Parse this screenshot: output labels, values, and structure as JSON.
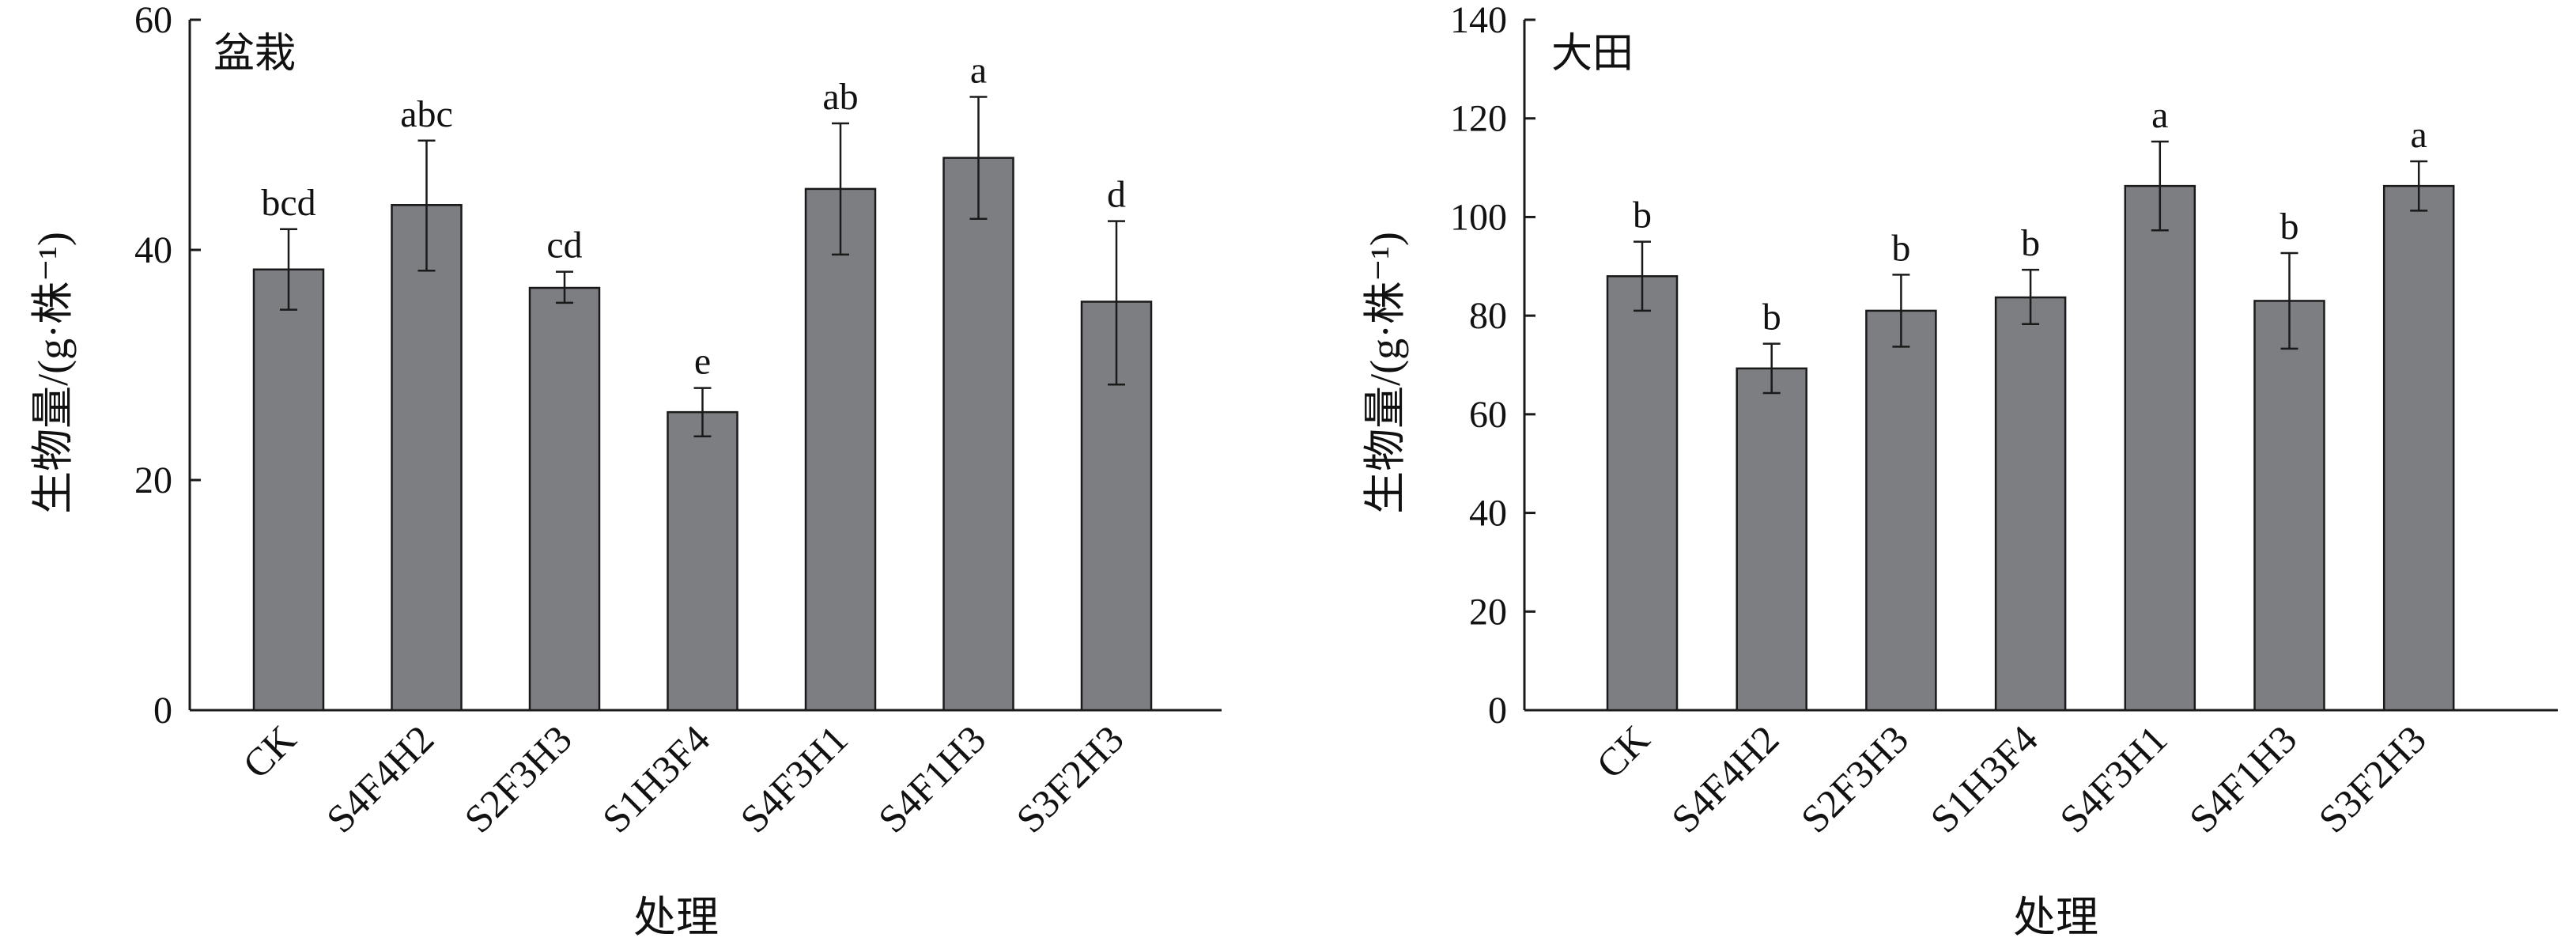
{
  "chart_data": [
    {
      "type": "bar",
      "title": "盆栽",
      "xlabel": "处理",
      "ylabel": "生物量/(g·株⁻¹)",
      "ylim": [
        0,
        60
      ],
      "yticks": [
        0,
        20,
        40,
        60
      ],
      "categories": [
        "CK",
        "S4F4H2",
        "S2F3H3",
        "S1H3F4",
        "S4F3H1",
        "S4F1H3",
        "S3F2H3"
      ],
      "values": [
        38.3,
        43.9,
        36.7,
        25.9,
        45.3,
        48.0,
        35.5
      ],
      "error_upper": [
        41.8,
        49.5,
        38.1,
        28.0,
        51.0,
        53.3,
        42.5
      ],
      "error_lower": [
        34.8,
        38.2,
        35.4,
        23.8,
        39.6,
        42.7,
        28.3
      ],
      "significance": [
        "bcd",
        "abc",
        "cd",
        "e",
        "ab",
        "a",
        "d"
      ],
      "grid": false
    },
    {
      "type": "bar",
      "title": "大田",
      "xlabel": "处理",
      "ylabel": "生物量/(g·株⁻¹)",
      "ylim": [
        0,
        140
      ],
      "yticks": [
        0,
        20,
        40,
        60,
        80,
        100,
        120,
        140
      ],
      "categories": [
        "CK",
        "S4F4H2",
        "S2F3H3",
        "S1H3F4",
        "S4F3H1",
        "S4F1H3",
        "S3F2H3"
      ],
      "values": [
        88.0,
        69.3,
        81.0,
        83.7,
        106.3,
        83.0,
        106.3
      ],
      "error_upper": [
        95.0,
        74.3,
        88.3,
        89.3,
        115.3,
        92.7,
        111.3
      ],
      "error_lower": [
        81.0,
        64.3,
        73.7,
        78.3,
        97.3,
        73.3,
        101.3
      ],
      "significance": [
        "b",
        "b",
        "b",
        "b",
        "a",
        "b",
        "a"
      ],
      "grid": false
    }
  ]
}
